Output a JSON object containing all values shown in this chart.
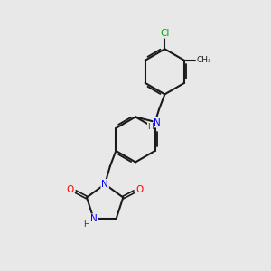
{
  "background_color": "#e8e8e8",
  "bond_color": "#1a1a1a",
  "atom_colors": {
    "N": "#0000ff",
    "O": "#ff0000",
    "Cl": "#00aa00",
    "C": "#000000",
    "H": "#333333"
  },
  "figsize": [
    3.0,
    3.0
  ],
  "dpi": 100
}
